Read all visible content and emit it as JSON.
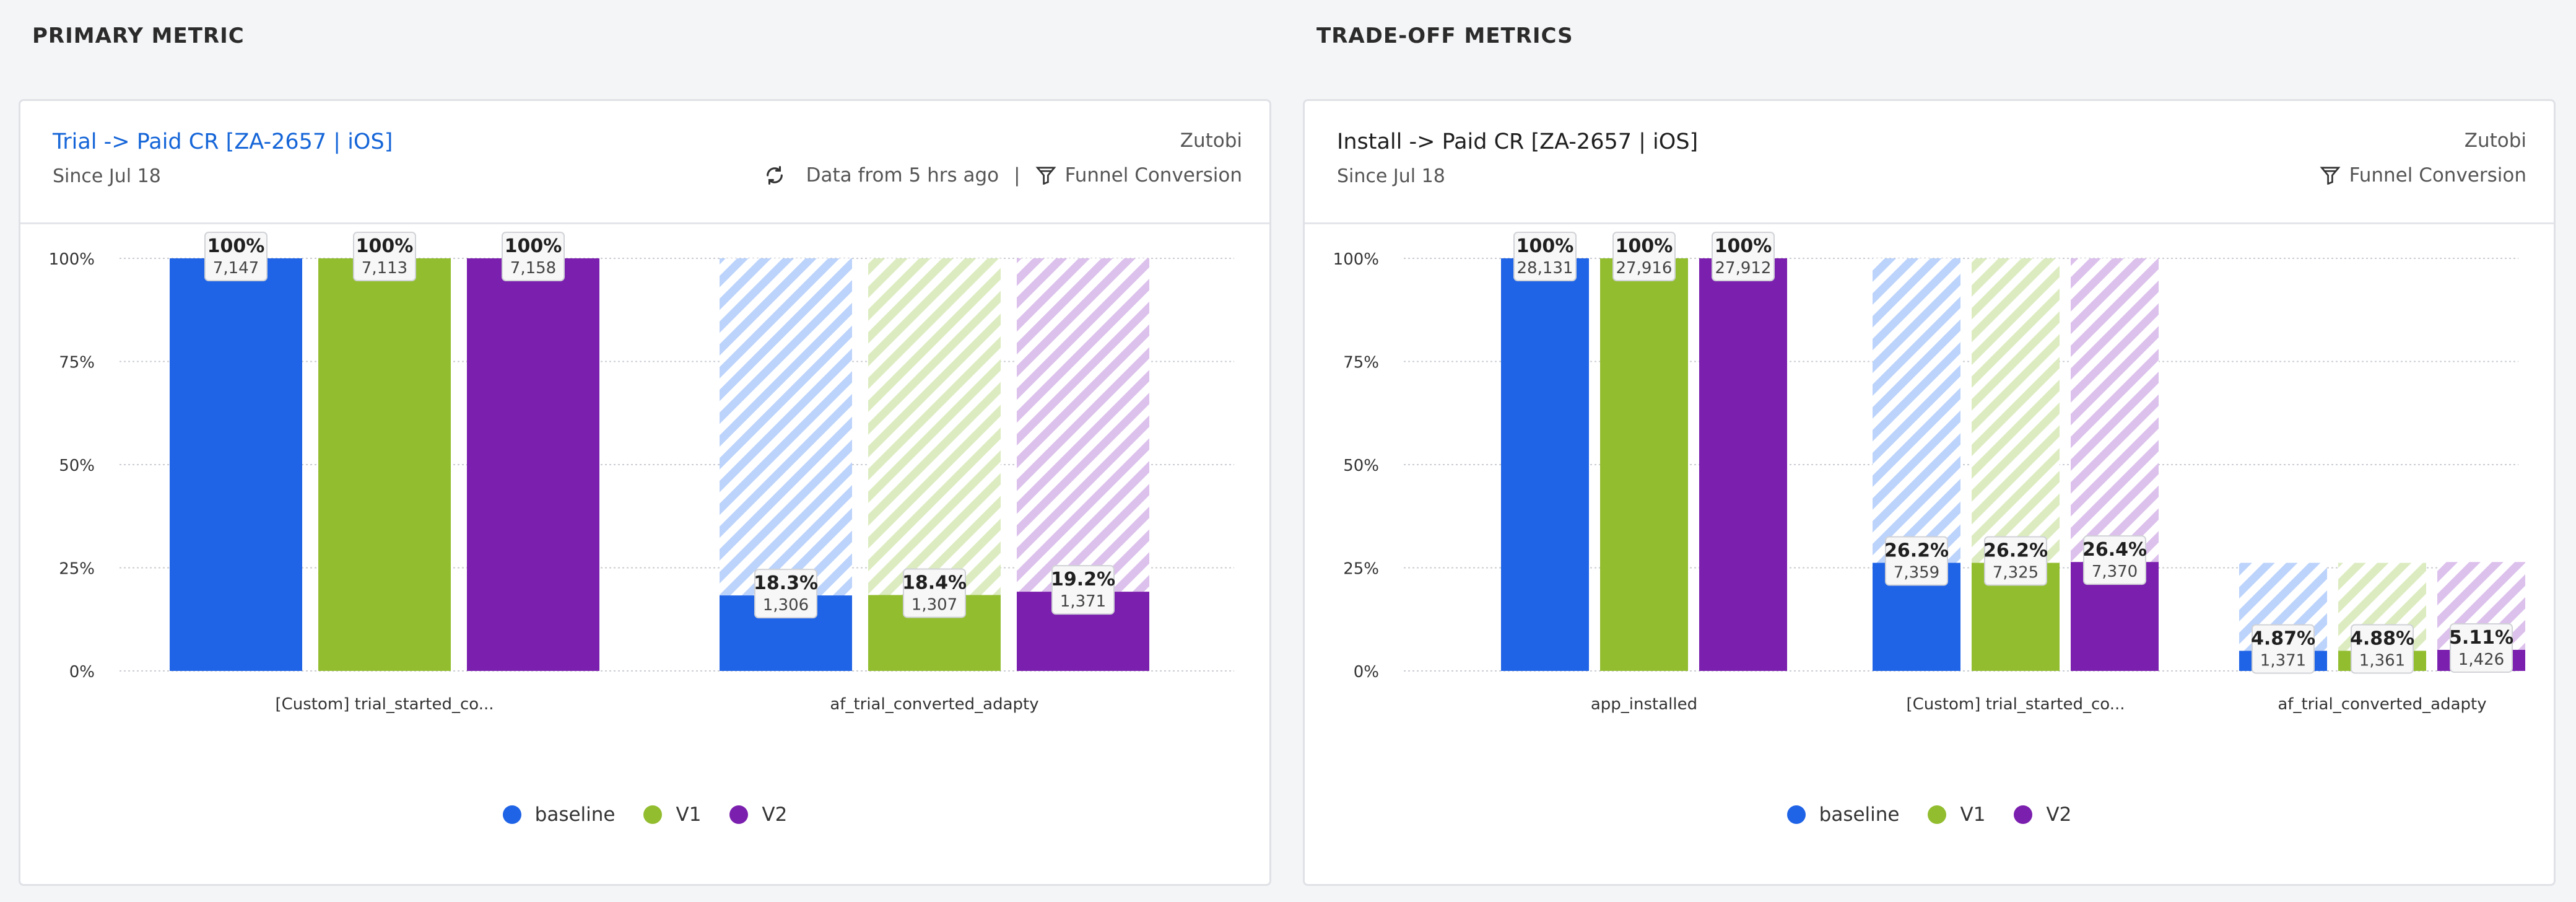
{
  "sections": {
    "primary": "PRIMARY METRIC",
    "tradeoff": "TRADE-OFF METRICS"
  },
  "colors": {
    "baseline": "#1f63e6",
    "V1": "#92bd2f",
    "V2": "#7b1fae",
    "baseline_light": "#bcd3fb",
    "V1_light": "#dcecc0",
    "V2_light": "#dcc1ec",
    "grid": "#c9ccd2"
  },
  "cards": [
    {
      "title": "Trial -> Paid CR [ZA-2657 | iOS]",
      "since": "Since Jul 18",
      "owner": "Zutobi",
      "data_from": "Data from 5 hrs ago",
      "separator": "|",
      "funnel_label": "Funnel Conversion",
      "legend": [
        "baseline",
        "V1",
        "V2"
      ]
    },
    {
      "title": "Install -> Paid CR [ZA-2657 | iOS]",
      "since": "Since Jul 18",
      "owner": "Zutobi",
      "funnel_label": "Funnel Conversion",
      "legend": [
        "baseline",
        "V1",
        "V2"
      ]
    }
  ],
  "chart_data": [
    {
      "type": "bar",
      "subtype": "funnel",
      "ylim": [
        0,
        100
      ],
      "yticks": [
        "0%",
        "25%",
        "50%",
        "75%",
        "100%"
      ],
      "categories": [
        "[Custom] trial_started_co...",
        "af_trial_converted_adapty"
      ],
      "series": [
        {
          "name": "baseline",
          "percent": [
            100,
            18.3
          ],
          "percent_labels": [
            "100%",
            "18.3%"
          ],
          "counts": [
            "7,147",
            "1,306"
          ]
        },
        {
          "name": "V1",
          "percent": [
            100,
            18.4
          ],
          "percent_labels": [
            "100%",
            "18.4%"
          ],
          "counts": [
            "7,113",
            "1,307"
          ]
        },
        {
          "name": "V2",
          "percent": [
            100,
            19.2
          ],
          "percent_labels": [
            "100%",
            "19.2%"
          ],
          "counts": [
            "7,158",
            "1,371"
          ]
        }
      ],
      "grid": true
    },
    {
      "type": "bar",
      "subtype": "funnel",
      "ylim": [
        0,
        100
      ],
      "yticks": [
        "0%",
        "25%",
        "50%",
        "75%",
        "100%"
      ],
      "categories": [
        "app_installed",
        "[Custom] trial_started_co...",
        "af_trial_converted_adapty"
      ],
      "series": [
        {
          "name": "baseline",
          "percent": [
            100,
            26.2,
            4.87
          ],
          "percent_labels": [
            "100%",
            "26.2%",
            "4.87%"
          ],
          "counts": [
            "28,131",
            "7,359",
            "1,371"
          ]
        },
        {
          "name": "V1",
          "percent": [
            100,
            26.2,
            4.88
          ],
          "percent_labels": [
            "100%",
            "26.2%",
            "4.88%"
          ],
          "counts": [
            "27,916",
            "7,325",
            "1,361"
          ]
        },
        {
          "name": "V2",
          "percent": [
            100,
            26.4,
            5.11
          ],
          "percent_labels": [
            "100%",
            "26.4%",
            "5.11%"
          ],
          "counts": [
            "27,912",
            "7,370",
            "1,426"
          ]
        }
      ],
      "grid": true
    }
  ]
}
